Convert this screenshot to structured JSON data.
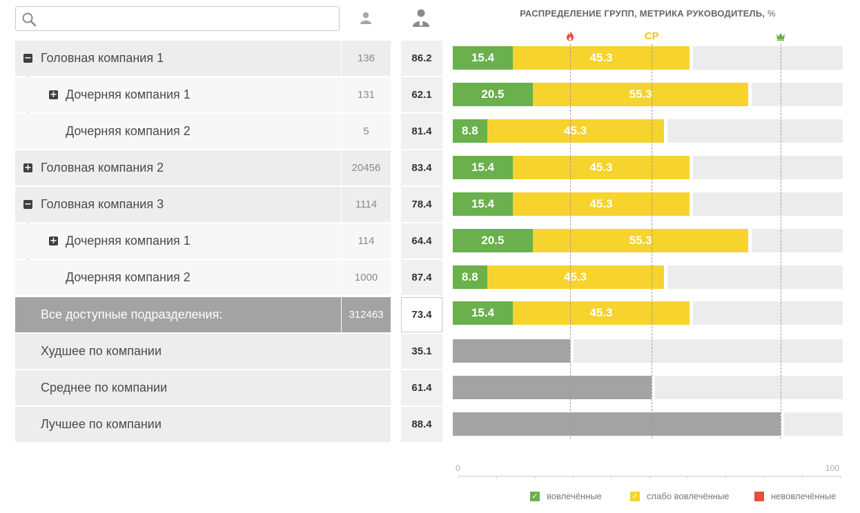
{
  "search": {
    "placeholder": "",
    "value": ""
  },
  "header": {
    "count_icon": "user-icon",
    "metric_icon": "manager-icon",
    "chart_title": "РАСПРЕДЕЛЕНИЕ ГРУПП,  МЕТРИКА РУКОВОДИТЕЛЬ,",
    "chart_title_unit": " %"
  },
  "tree": [
    {
      "label": "Головная компания 1",
      "count": "136",
      "metric": "86.2",
      "level": 0,
      "toggle": "−"
    },
    {
      "label": "Дочерняя компания 1",
      "count": "131",
      "metric": "62.1",
      "level": 1,
      "toggle": "+"
    },
    {
      "label": "Дочерняя компания 2",
      "count": "5",
      "metric": "81.4",
      "level": 1,
      "toggle": ""
    },
    {
      "label": "Головная компания 2",
      "count": "20456",
      "metric": "83.4",
      "level": 0,
      "toggle": "+"
    },
    {
      "label": "Головная компания 3",
      "count": "1114",
      "metric": "78.4",
      "level": 0,
      "toggle": "−"
    },
    {
      "label": "Дочерняя компания 1",
      "count": "114",
      "metric": "64.4",
      "level": 1,
      "toggle": "+"
    },
    {
      "label": "Дочерняя компания 2",
      "count": "1000",
      "metric": "87.4",
      "level": 1,
      "toggle": ""
    }
  ],
  "total": {
    "label": "Все доступные подразделения:",
    "count": "312463",
    "metric": "73.4"
  },
  "summary": [
    {
      "label": "Худшее по компании",
      "metric": "35.1"
    },
    {
      "label": "Среднее по компании",
      "metric": "61.4"
    },
    {
      "label": "Лучшее по компании",
      "metric": "88.4"
    }
  ],
  "markers": [
    {
      "icon": "fire-icon",
      "text": "",
      "color": "#e74c3c",
      "value": 30
    },
    {
      "icon": "",
      "text": "СР",
      "color": "#f1c40f",
      "value": 51
    },
    {
      "icon": "crown-icon",
      "text": "",
      "color": "#6ab04c",
      "value": 84
    }
  ],
  "axis": {
    "min_label": "0",
    "max_label": "100"
  },
  "legend": [
    {
      "label": "вовлечённые",
      "color": "#6ab04c",
      "checked": true
    },
    {
      "label": "слабо вовлечённые",
      "color": "#f6d32d",
      "checked": true
    },
    {
      "label": "невовлечённые",
      "color": "#e74c3c",
      "checked": false
    }
  ],
  "chart_data": {
    "type": "bar",
    "title": "РАСПРЕДЕЛЕНИЕ ГРУПП,  МЕТРИКА РУКОВОДИТЕЛЬ, %",
    "xlim": [
      0,
      100
    ],
    "categories": [
      "Головная компания 1",
      "Дочерняя компания 1",
      "Дочерняя компания 2",
      "Головная компания 2",
      "Головная компания 3",
      "Дочерняя компания 1",
      "Дочерняя компания 2",
      "Все доступные подразделения:"
    ],
    "series": [
      {
        "name": "вовлечённые",
        "values": [
          15.4,
          20.5,
          8.8,
          15.4,
          15.4,
          20.5,
          8.8,
          15.4
        ],
        "labels": [
          "15.4",
          "20.5",
          "8.8",
          "15.4",
          "15.4",
          "20.5",
          "8.8",
          "15.4"
        ]
      },
      {
        "name": "слабо вовлечённые",
        "values": [
          45.3,
          55.3,
          45.3,
          45.3,
          45.3,
          55.3,
          45.3,
          45.3
        ],
        "labels": [
          "45.3",
          "55.3",
          "45.3",
          "45.3",
          "45.3",
          "55.3",
          "45.3",
          "45.3"
        ]
      }
    ],
    "summary_bars": [
      {
        "name": "Худшее по компании",
        "value": 30
      },
      {
        "name": "Среднее по компании",
        "value": 51
      },
      {
        "name": "Лучшее по компании",
        "value": 84
      }
    ]
  }
}
